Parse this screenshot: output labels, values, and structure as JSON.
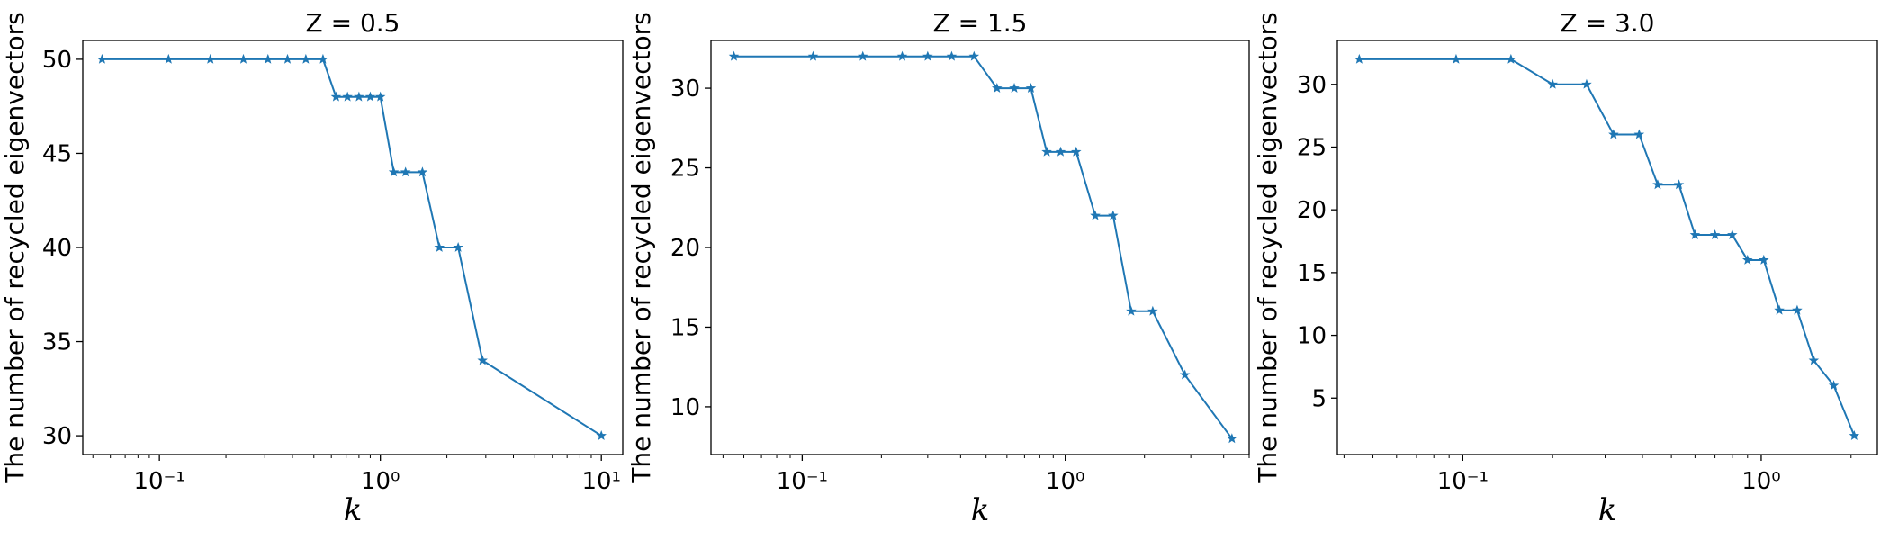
{
  "chart_data": [
    {
      "type": "line",
      "title": "Z = 0.5",
      "xlabel": "k",
      "ylabel": "The number of recycled eigenvectors",
      "xscale": "log",
      "xlim": [
        0.045,
        12.5
      ],
      "ylim": [
        29,
        51
      ],
      "x_ticks": [
        0.1,
        1,
        10
      ],
      "x_tick_labels": [
        "10⁻¹",
        "10⁰",
        "10¹"
      ],
      "y_ticks": [
        30,
        35,
        40,
        45,
        50
      ],
      "grid": false,
      "series": [
        {
          "marker": "star",
          "color": "#1f77b4",
          "x": [
            0.055,
            0.11,
            0.17,
            0.24,
            0.31,
            0.38,
            0.46,
            0.55,
            0.63,
            0.71,
            0.8,
            0.9,
            1.0,
            1.15,
            1.3,
            1.55,
            1.85,
            2.25,
            2.9,
            10.0
          ],
          "y": [
            50,
            50,
            50,
            50,
            50,
            50,
            50,
            50,
            48,
            48,
            48,
            48,
            48,
            44,
            44,
            44,
            40,
            40,
            34,
            30
          ]
        }
      ]
    },
    {
      "type": "line",
      "title": "Z = 1.5",
      "xlabel": "k",
      "ylabel": "The number of recycled eigenvectors",
      "xscale": "log",
      "xlim": [
        0.045,
        5.0
      ],
      "ylim": [
        7,
        33
      ],
      "x_ticks": [
        0.1,
        1
      ],
      "x_tick_labels": [
        "10⁻¹",
        "10⁰"
      ],
      "y_ticks": [
        10,
        15,
        20,
        25,
        30
      ],
      "grid": false,
      "series": [
        {
          "marker": "star",
          "color": "#1f77b4",
          "x": [
            0.055,
            0.11,
            0.17,
            0.24,
            0.3,
            0.37,
            0.45,
            0.55,
            0.64,
            0.74,
            0.85,
            0.96,
            1.1,
            1.3,
            1.52,
            1.78,
            2.15,
            2.85,
            4.3
          ],
          "y": [
            32,
            32,
            32,
            32,
            32,
            32,
            32,
            30,
            30,
            30,
            26,
            26,
            26,
            22,
            22,
            16,
            16,
            12,
            8
          ]
        }
      ]
    },
    {
      "type": "line",
      "title": "Z = 3.0",
      "xlabel": "k",
      "ylabel": "The number of recycled eigenvectors",
      "xscale": "log",
      "xlim": [
        0.038,
        2.45
      ],
      "ylim": [
        0.5,
        33.5
      ],
      "x_ticks": [
        0.1,
        1
      ],
      "x_tick_labels": [
        "10⁻¹",
        "10⁰"
      ],
      "y_ticks": [
        5,
        10,
        15,
        20,
        25,
        30
      ],
      "grid": false,
      "series": [
        {
          "marker": "star",
          "color": "#1f77b4",
          "x": [
            0.045,
            0.095,
            0.145,
            0.2,
            0.26,
            0.32,
            0.39,
            0.45,
            0.53,
            0.6,
            0.7,
            0.8,
            0.9,
            1.02,
            1.15,
            1.32,
            1.5,
            1.75,
            2.05
          ],
          "y": [
            32,
            32,
            32,
            30,
            30,
            26,
            26,
            22,
            22,
            18,
            18,
            18,
            16,
            16,
            12,
            12,
            8,
            6,
            2
          ]
        }
      ]
    }
  ]
}
